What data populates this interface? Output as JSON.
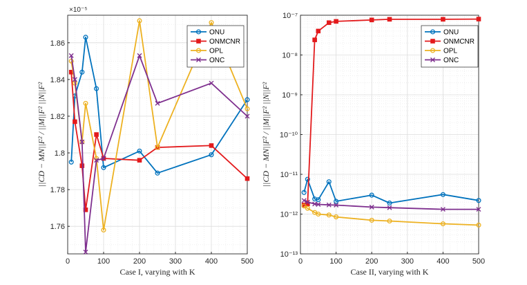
{
  "chart_data": [
    {
      "type": "line",
      "yscale": "linear",
      "xlabel": "Case I, varying with K",
      "ylabel": "||CD − MN||F² / ||M||F² ||N||F²",
      "exponent_label": "×10⁻⁵",
      "xlim": [
        0,
        500
      ],
      "ylim": [
        1.745,
        1.875
      ],
      "xticks": [
        0,
        100,
        200,
        300,
        400,
        500
      ],
      "xtick_labels": [
        "0",
        "100",
        "200",
        "300",
        "400",
        "500"
      ],
      "yticks": [
        1.76,
        1.78,
        1.8,
        1.82,
        1.84,
        1.86
      ],
      "ytick_labels": [
        "1.76",
        "1.78",
        "1.8",
        "1.82",
        "1.84",
        "1.86"
      ],
      "grid": true,
      "legend_position": "top-right",
      "series": [
        {
          "name": "ONU",
          "marker": "circle",
          "color": "#0072BD",
          "x": [
            10,
            20,
            40,
            50,
            80,
            100,
            200,
            250,
            400,
            500
          ],
          "y": [
            1.795,
            1.831,
            1.844,
            1.863,
            1.835,
            1.792,
            1.801,
            1.789,
            1.799,
            1.829
          ]
        },
        {
          "name": "ONMCNR",
          "marker": "square",
          "color": "#E31A1C",
          "x": [
            10,
            20,
            40,
            50,
            80,
            100,
            200,
            250,
            400,
            500
          ],
          "y": [
            1.844,
            1.817,
            1.793,
            1.769,
            1.81,
            1.797,
            1.796,
            1.803,
            1.804,
            1.786
          ]
        },
        {
          "name": "OPL",
          "marker": "circle",
          "color": "#EDB120",
          "x": [
            10,
            20,
            40,
            50,
            80,
            100,
            200,
            250,
            400,
            500
          ],
          "y": [
            1.85,
            1.838,
            1.806,
            1.827,
            1.797,
            1.758,
            1.872,
            1.803,
            1.871,
            1.824
          ]
        },
        {
          "name": "ONC",
          "marker": "x",
          "color": "#7E2F8E",
          "x": [
            10,
            20,
            40,
            50,
            80,
            100,
            200,
            250,
            400,
            500
          ],
          "y": [
            1.853,
            1.84,
            1.806,
            1.746,
            1.796,
            1.797,
            1.853,
            1.827,
            1.838,
            1.82
          ]
        }
      ]
    },
    {
      "type": "line",
      "yscale": "log",
      "xlabel": "Case II, varying with K",
      "ylabel": "||CD − MN||F² / ||M||F² ||N||F²",
      "xlim": [
        0,
        500
      ],
      "ylim": [
        1e-13,
        1e-07
      ],
      "xticks": [
        0,
        100,
        200,
        300,
        400,
        500
      ],
      "xtick_labels": [
        "0",
        "100",
        "200",
        "300",
        "400",
        "500"
      ],
      "yticks_exp": [
        -13,
        -12,
        -11,
        -10,
        -9,
        -8,
        -7
      ],
      "ytick_labels": [
        "10⁻¹³",
        "10⁻¹²",
        "10⁻¹¹",
        "10⁻¹⁰",
        "10⁻⁹",
        "10⁻⁸",
        "10⁻⁷"
      ],
      "grid": true,
      "legend_position": "top-right",
      "series": [
        {
          "name": "ONU",
          "marker": "circle",
          "color": "#0072BD",
          "x": [
            10,
            20,
            40,
            50,
            80,
            100,
            200,
            250,
            400,
            500
          ],
          "y": [
            3.5e-12,
            7.5e-12,
            2.4e-12,
            2.3e-12,
            6.5e-12,
            2.1e-12,
            3e-12,
            1.9e-12,
            3.1e-12,
            2.2e-12
          ]
        },
        {
          "name": "ONMCNR",
          "marker": "square",
          "color": "#E31A1C",
          "x": [
            10,
            20,
            40,
            50,
            80,
            100,
            200,
            250,
            400,
            500
          ],
          "y": [
            1.7e-12,
            1.8e-12,
            2.4e-08,
            4e-08,
            6.5e-08,
            7e-08,
            7.6e-08,
            7.9e-08,
            7.9e-08,
            8e-08
          ]
        },
        {
          "name": "OPL",
          "marker": "circle",
          "color": "#EDB120",
          "x": [
            10,
            20,
            40,
            50,
            80,
            100,
            200,
            250,
            400,
            500
          ],
          "y": [
            1.6e-12,
            1.4e-12,
            1.1e-12,
            1e-12,
            9.5e-13,
            8.5e-13,
            7e-13,
            6.7e-13,
            5.7e-13,
            5.3e-13
          ]
        },
        {
          "name": "ONC",
          "marker": "x",
          "color": "#7E2F8E",
          "x": [
            10,
            20,
            40,
            50,
            80,
            100,
            200,
            250,
            400,
            500
          ],
          "y": [
            2.2e-12,
            2e-12,
            1.8e-12,
            1.75e-12,
            1.7e-12,
            1.68e-12,
            1.5e-12,
            1.45e-12,
            1.32e-12,
            1.32e-12
          ]
        }
      ]
    }
  ]
}
